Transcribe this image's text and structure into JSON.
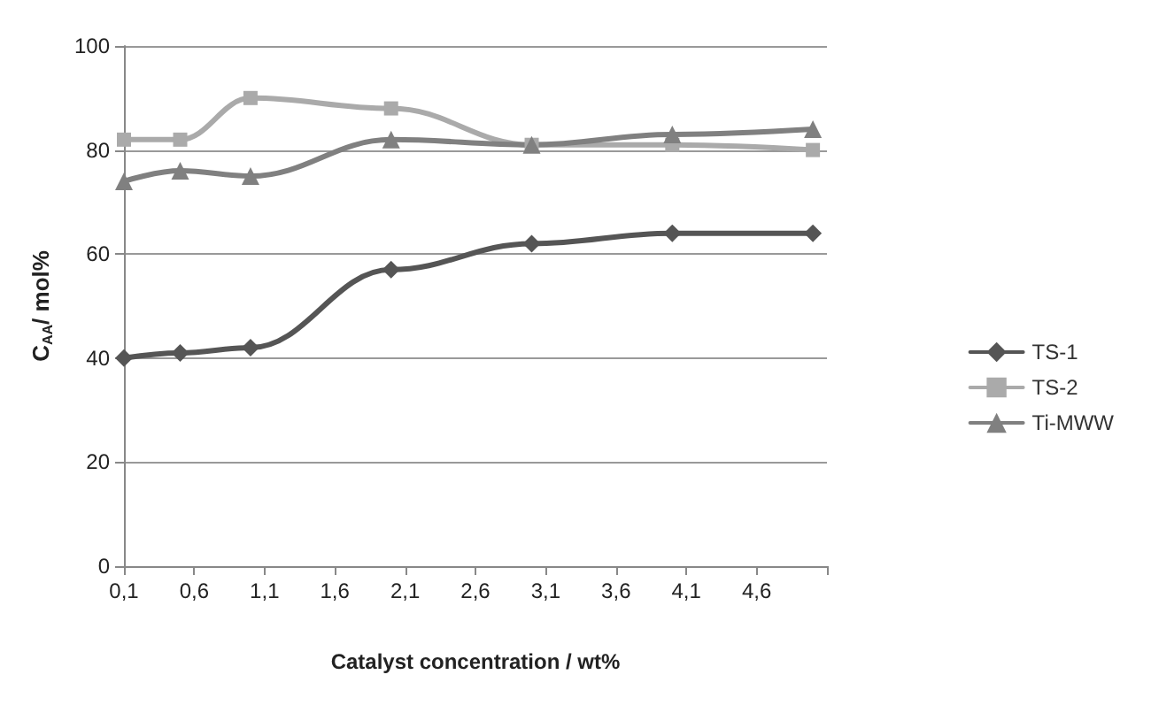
{
  "chart_data": {
    "type": "line",
    "xlabel": "Catalyst concentration / wt%",
    "ylabel": "C$_{AA}$/ mol%",
    "x": [
      0.1,
      0.5,
      1,
      2,
      3,
      4,
      5
    ],
    "series": [
      {
        "name": "TS-1",
        "color": "#555555",
        "marker": "diamond",
        "values": [
          40,
          41,
          42,
          57,
          62,
          64,
          64
        ]
      },
      {
        "name": "TS-2",
        "color": "#aaaaaa",
        "marker": "square",
        "values": [
          82,
          82,
          90,
          88,
          81,
          81,
          80
        ]
      },
      {
        "name": "Ti-MWW",
        "color": "#808080",
        "marker": "triangle",
        "values": [
          74,
          76,
          75,
          82,
          81,
          83,
          84
        ]
      }
    ],
    "xlim": [
      0.1,
      5.1
    ],
    "xticks": [
      {
        "value": 0.1,
        "label": "0,1"
      },
      {
        "value": 0.6,
        "label": "0,6"
      },
      {
        "value": 1.1,
        "label": "1,1"
      },
      {
        "value": 1.6,
        "label": "1,6"
      },
      {
        "value": 2.1,
        "label": "2,1"
      },
      {
        "value": 2.6,
        "label": "2,6"
      },
      {
        "value": 3.1,
        "label": "3,1"
      },
      {
        "value": 3.6,
        "label": "3,6"
      },
      {
        "value": 4.1,
        "label": "4,1"
      },
      {
        "value": 4.6,
        "label": "4,6"
      },
      {
        "value": 5.1,
        "label": null
      }
    ],
    "ylim": [
      0,
      100
    ],
    "yticks": [
      0,
      20,
      40,
      60,
      80,
      100
    ],
    "grid": "y",
    "legend": "right",
    "line_style": "solid"
  }
}
